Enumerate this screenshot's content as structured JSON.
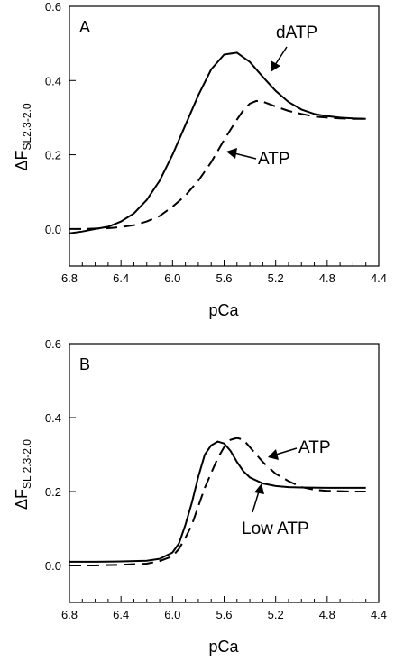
{
  "chart_data": [
    {
      "type": "line",
      "panel_label": "A",
      "xlabel": "pCa",
      "ylabel": {
        "main": "ΔF",
        "sub": "SL2.3-2.0"
      },
      "xlim": [
        6.8,
        4.4
      ],
      "x_reversed": true,
      "ylim": [
        -0.1,
        0.6
      ],
      "x_ticks": [
        "6.8",
        "6.4",
        "6.0",
        "5.6",
        "5.2",
        "4.8",
        "4.4"
      ],
      "y_ticks": [
        "0.0",
        "0.2",
        "0.4",
        "0.6"
      ],
      "grid": false,
      "series": [
        {
          "name": "dATP",
          "style": "solid",
          "x": [
            6.8,
            6.7,
            6.6,
            6.5,
            6.4,
            6.3,
            6.2,
            6.1,
            6.0,
            5.9,
            5.8,
            5.7,
            5.6,
            5.5,
            5.4,
            5.3,
            5.2,
            5.1,
            5.0,
            4.9,
            4.8,
            4.7,
            4.6,
            4.5
          ],
          "y": [
            -0.012,
            -0.007,
            0.0,
            0.006,
            0.02,
            0.042,
            0.078,
            0.13,
            0.2,
            0.28,
            0.36,
            0.43,
            0.47,
            0.475,
            0.45,
            0.41,
            0.372,
            0.342,
            0.322,
            0.31,
            0.304,
            0.3,
            0.298,
            0.297
          ]
        },
        {
          "name": "ATP",
          "style": "dashed",
          "x": [
            6.8,
            6.7,
            6.6,
            6.5,
            6.4,
            6.3,
            6.2,
            6.1,
            6.0,
            5.9,
            5.8,
            5.7,
            5.6,
            5.5,
            5.45,
            5.4,
            5.35,
            5.3,
            5.2,
            5.1,
            5.0,
            4.9,
            4.8,
            4.7,
            4.6,
            4.5
          ],
          "y": [
            0.0,
            0.0,
            0.001,
            0.002,
            0.005,
            0.01,
            0.02,
            0.035,
            0.06,
            0.09,
            0.13,
            0.18,
            0.24,
            0.295,
            0.32,
            0.338,
            0.345,
            0.343,
            0.33,
            0.318,
            0.31,
            0.303,
            0.3,
            0.298,
            0.297,
            0.297
          ]
        }
      ],
      "annotations": [
        {
          "text": "dATP",
          "series": "dATP"
        },
        {
          "text": "ATP",
          "series": "ATP"
        }
      ]
    },
    {
      "type": "line",
      "panel_label": "B",
      "xlabel": "pCa",
      "ylabel": {
        "main": "ΔF",
        "sub": "SL 2.3-2.0"
      },
      "xlim": [
        6.8,
        4.4
      ],
      "x_reversed": true,
      "ylim": [
        -0.1,
        0.6
      ],
      "x_ticks": [
        "6.8",
        "6.4",
        "6.0",
        "5.6",
        "5.2",
        "4.8",
        "4.4"
      ],
      "y_ticks": [
        "0.0",
        "0.2",
        "0.4",
        "0.6"
      ],
      "grid": false,
      "series": [
        {
          "name": "Low ATP",
          "style": "solid",
          "x": [
            6.8,
            6.6,
            6.4,
            6.2,
            6.1,
            6.0,
            5.95,
            5.9,
            5.85,
            5.8,
            5.75,
            5.7,
            5.65,
            5.6,
            5.55,
            5.5,
            5.45,
            5.4,
            5.3,
            5.2,
            5.1,
            5.0,
            4.8,
            4.6,
            4.5
          ],
          "y": [
            0.01,
            0.01,
            0.011,
            0.013,
            0.018,
            0.035,
            0.06,
            0.11,
            0.17,
            0.24,
            0.3,
            0.325,
            0.335,
            0.33,
            0.31,
            0.28,
            0.255,
            0.238,
            0.222,
            0.215,
            0.212,
            0.211,
            0.21,
            0.21,
            0.21
          ]
        },
        {
          "name": "ATP",
          "style": "dashed",
          "x": [
            6.8,
            6.6,
            6.4,
            6.2,
            6.1,
            6.0,
            5.95,
            5.9,
            5.85,
            5.8,
            5.75,
            5.7,
            5.65,
            5.6,
            5.55,
            5.5,
            5.45,
            5.4,
            5.35,
            5.3,
            5.2,
            5.1,
            5.0,
            4.9,
            4.8,
            4.6,
            4.5
          ],
          "y": [
            0.0,
            0.0,
            0.002,
            0.005,
            0.012,
            0.025,
            0.045,
            0.075,
            0.11,
            0.16,
            0.21,
            0.25,
            0.29,
            0.32,
            0.34,
            0.345,
            0.34,
            0.32,
            0.3,
            0.28,
            0.248,
            0.228,
            0.212,
            0.205,
            0.202,
            0.2,
            0.2
          ]
        }
      ],
      "annotations": [
        {
          "text": "ATP",
          "series": "ATP"
        },
        {
          "text": "Low ATP",
          "series": "Low ATP"
        }
      ]
    }
  ]
}
